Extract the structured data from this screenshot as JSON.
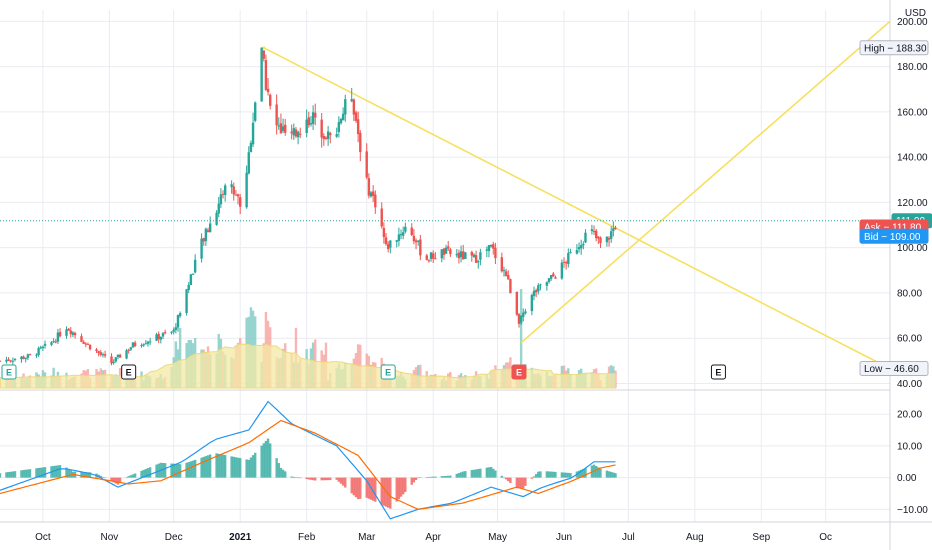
{
  "currency_label": "USD",
  "chart_data": [
    {
      "type": "candlestick",
      "x_axis": {
        "type": "date",
        "range": [
          "2020-09-11",
          "2021-10-31"
        ],
        "labels": [
          {
            "date": "2020-10-01",
            "text": "Oct"
          },
          {
            "date": "2020-11-01",
            "text": "Nov"
          },
          {
            "date": "2020-12-01",
            "text": "Dec"
          },
          {
            "date": "2021-01-01",
            "text": "2021"
          },
          {
            "date": "2021-02-01",
            "text": "Feb"
          },
          {
            "date": "2021-03-01",
            "text": "Mar"
          },
          {
            "date": "2021-04-01",
            "text": "Apr"
          },
          {
            "date": "2021-05-01",
            "text": "May"
          },
          {
            "date": "2021-06-01",
            "text": "Jun"
          },
          {
            "date": "2021-07-01",
            "text": "Jul"
          },
          {
            "date": "2021-08-01",
            "text": "Aug"
          },
          {
            "date": "2021-09-01",
            "text": "Sep"
          },
          {
            "date": "2021-10-01",
            "text": "Oc"
          }
        ]
      },
      "y_axis": {
        "unit": "USD",
        "range": [
          38,
          205
        ],
        "ticks": [
          {
            "value": 40,
            "text": "40.00"
          },
          {
            "value": 60,
            "text": "60.00"
          },
          {
            "value": 80,
            "text": "80.00"
          },
          {
            "value": 100,
            "text": "100.00"
          },
          {
            "value": 120,
            "text": "120.00"
          },
          {
            "value": 140,
            "text": "140.00"
          },
          {
            "value": 160,
            "text": "160.00"
          },
          {
            "value": 180,
            "text": "180.00"
          },
          {
            "value": 200,
            "text": "200.00"
          }
        ]
      },
      "price_keypoints": [
        [
          "2020-09-11",
          50
        ],
        [
          "2020-09-25",
          52
        ],
        [
          "2020-10-05",
          58
        ],
        [
          "2020-10-12",
          65
        ],
        [
          "2020-10-22",
          57
        ],
        [
          "2020-11-02",
          49
        ],
        [
          "2020-11-12",
          57
        ],
        [
          "2020-11-22",
          60
        ],
        [
          "2020-12-01",
          63
        ],
        [
          "2020-12-06",
          78
        ],
        [
          "2020-12-12",
          97
        ],
        [
          "2020-12-20",
          115
        ],
        [
          "2020-12-26",
          130
        ],
        [
          "2021-01-02",
          118
        ],
        [
          "2021-01-08",
          165
        ],
        [
          "2021-01-11",
          185
        ],
        [
          "2021-01-16",
          155
        ],
        [
          "2021-01-25",
          148
        ],
        [
          "2021-02-03",
          158
        ],
        [
          "2021-02-12",
          148
        ],
        [
          "2021-02-22",
          168
        ],
        [
          "2021-03-01",
          128
        ],
        [
          "2021-03-06",
          118
        ],
        [
          "2021-03-10",
          100
        ],
        [
          "2021-03-20",
          110
        ],
        [
          "2021-03-28",
          95
        ],
        [
          "2021-04-06",
          98
        ],
        [
          "2021-04-20",
          95
        ],
        [
          "2021-04-28",
          100
        ],
        [
          "2021-05-05",
          88
        ],
        [
          "2021-05-11",
          68
        ],
        [
          "2021-05-18",
          80
        ],
        [
          "2021-05-28",
          88
        ],
        [
          "2021-06-05",
          98
        ],
        [
          "2021-06-13",
          108
        ],
        [
          "2021-06-19",
          100
        ],
        [
          "2021-06-25",
          110
        ]
      ],
      "volume": {
        "shown": true,
        "moving_average_shown": true
      },
      "levels": {
        "high": {
          "label": "High",
          "value": 188.3,
          "text": "188.30"
        },
        "low": {
          "label": "Low",
          "value": 46.6,
          "text": "46.60"
        }
      },
      "last_price": {
        "value": 111.9,
        "text": "111.90",
        "color": "#26a69a"
      },
      "ask": {
        "label": "Ask",
        "value": 111.8,
        "text": "111.80",
        "color": "#ef5350"
      },
      "bid": {
        "label": "Bid",
        "value": 109.0,
        "text": "109.00",
        "color": "#2196f3"
      },
      "trendlines": [
        {
          "color": "#f7e05d",
          "from": [
            "2021-01-12",
            188.3
          ],
          "to": [
            "2021-10-31",
            46.6
          ]
        },
        {
          "color": "#f7e05d",
          "from": [
            "2021-05-12",
            58
          ],
          "to": [
            "2021-10-31",
            200
          ]
        }
      ],
      "earnings_markers": [
        {
          "date": "2020-09-11",
          "text": "E",
          "style": "reported"
        },
        {
          "date": "2020-11-10",
          "text": "E",
          "style": "neutral"
        },
        {
          "date": "2021-03-11",
          "text": "E",
          "style": "reported"
        },
        {
          "date": "2021-05-11",
          "text": "E",
          "style": "negative"
        },
        {
          "date": "2021-08-12",
          "text": "E",
          "style": "upcoming"
        }
      ],
      "colors": {
        "up": "#26a69a",
        "down": "#ef5350",
        "grid": "#e9ecf1"
      }
    },
    {
      "type": "macd",
      "y_axis": {
        "range": [
          -14,
          27
        ],
        "ticks": [
          {
            "value": 20,
            "text": "20.00"
          },
          {
            "value": 10,
            "text": "10.00"
          },
          {
            "value": 0,
            "text": "0.00"
          },
          {
            "value": -10,
            "text": "−10.00"
          }
        ]
      },
      "macd_keypoints": [
        [
          "2020-09-11",
          -4
        ],
        [
          "2020-10-10",
          3
        ],
        [
          "2020-10-25",
          1
        ],
        [
          "2020-11-05",
          -3
        ],
        [
          "2020-11-20",
          1
        ],
        [
          "2020-12-05",
          5
        ],
        [
          "2020-12-20",
          12
        ],
        [
          "2021-01-05",
          15
        ],
        [
          "2021-01-14",
          24
        ],
        [
          "2021-01-25",
          17
        ],
        [
          "2021-02-15",
          10
        ],
        [
          "2021-03-01",
          -1
        ],
        [
          "2021-03-12",
          -13
        ],
        [
          "2021-03-25",
          -10
        ],
        [
          "2021-04-10",
          -8
        ],
        [
          "2021-04-28",
          -3
        ],
        [
          "2021-05-13",
          -6
        ],
        [
          "2021-05-22",
          -3
        ],
        [
          "2021-06-05",
          0
        ],
        [
          "2021-06-15",
          5
        ],
        [
          "2021-06-25",
          5
        ]
      ],
      "signal_keypoints": [
        [
          "2020-09-11",
          -5
        ],
        [
          "2020-10-15",
          1
        ],
        [
          "2020-11-10",
          -2
        ],
        [
          "2020-11-25",
          -1
        ],
        [
          "2020-12-15",
          5
        ],
        [
          "2021-01-05",
          11
        ],
        [
          "2021-01-20",
          18
        ],
        [
          "2021-02-05",
          14
        ],
        [
          "2021-02-25",
          7
        ],
        [
          "2021-03-12",
          -6
        ],
        [
          "2021-03-25",
          -10
        ],
        [
          "2021-04-15",
          -8
        ],
        [
          "2021-05-10",
          -3
        ],
        [
          "2021-05-20",
          -5
        ],
        [
          "2021-06-05",
          -1
        ],
        [
          "2021-06-18",
          3
        ],
        [
          "2021-06-25",
          4
        ]
      ],
      "colors": {
        "macd": "#2196f3",
        "signal": "#ff6d00",
        "hist_up": "#26a69a",
        "hist_down": "#ef5350"
      }
    }
  ]
}
